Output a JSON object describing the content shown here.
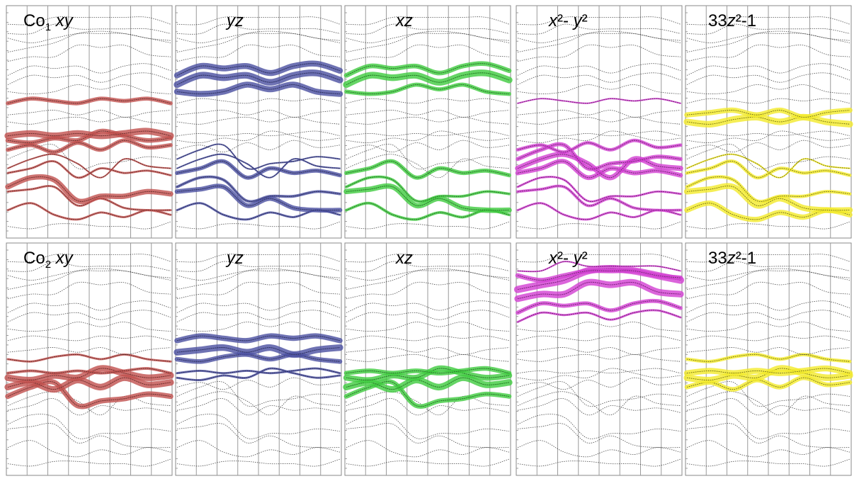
{
  "chart_data": {
    "type": "line",
    "layout": "2 rows x 5 columns of band-structure panels with orbital-projected fat bands",
    "x_axis": {
      "tick_labels_shown": false,
      "vertical_gridlines": 8
    },
    "y_axis": {
      "tick_labels_shown": false,
      "minor_ticks_on_left": true
    },
    "grid": true,
    "rows": [
      {
        "atom": "Co1",
        "panels": [
          {
            "title": {
              "prefix": "Co",
              "sub": "1",
              "rest": " xy"
            },
            "orbital": "xy",
            "color": "#c0504d"
          },
          {
            "title": {
              "prefix": "",
              "sub": "",
              "rest": "yz"
            },
            "orbital": "yz",
            "color": "#4a4fa0"
          },
          {
            "title": {
              "prefix": "",
              "sub": "",
              "rest": "xz"
            },
            "orbital": "xz",
            "color": "#3ecb3e"
          },
          {
            "title": {
              "prefix": "",
              "sub": "",
              "rest": "x2-y2",
              "display": "x²- y²"
            },
            "orbital": "x2-y2",
            "color": "#d23fd2"
          },
          {
            "title": {
              "prefix": "3",
              "sub": "",
              "rest": "z2-1",
              "display": "3z²-1"
            },
            "orbital": "3z2-1",
            "color": "#f2ea2a"
          }
        ]
      },
      {
        "atom": "Co2",
        "panels": [
          {
            "title": {
              "prefix": "Co",
              "sub": "2",
              "rest": " xy"
            },
            "orbital": "xy",
            "color": "#c0504d"
          },
          {
            "title": {
              "prefix": "",
              "sub": "",
              "rest": "yz"
            },
            "orbital": "yz",
            "color": "#4a4fa0"
          },
          {
            "title": {
              "prefix": "",
              "sub": "",
              "rest": "xz"
            },
            "orbital": "xz",
            "color": "#3ecb3e"
          },
          {
            "title": {
              "prefix": "",
              "sub": "",
              "rest": "x2-y2",
              "display": "x²- y²"
            },
            "orbital": "x2-y2",
            "color": "#d23fd2"
          },
          {
            "title": {
              "prefix": "3",
              "sub": "",
              "rest": "z2-1",
              "display": "3z²-1"
            },
            "orbital": "3z2-1",
            "color": "#f2ea2a"
          }
        ]
      }
    ],
    "bands": [
      {
        "y": [
          0.05,
          0.04,
          0.06,
          0.06,
          0.05,
          0.05,
          0.04,
          0.07
        ]
      },
      {
        "y": [
          0.12,
          0.15,
          0.1,
          0.08,
          0.11,
          0.09,
          0.12,
          0.1
        ]
      },
      {
        "y": [
          0.2,
          0.21,
          0.22,
          0.14,
          0.17,
          0.13,
          0.12,
          0.12
        ]
      },
      {
        "y": [
          0.22,
          0.26,
          0.25,
          0.16,
          0.18,
          0.18,
          0.2,
          0.19
        ]
      },
      {
        "y": [
          0.28,
          0.3,
          0.33,
          0.26,
          0.3,
          0.28,
          0.29,
          0.27
        ]
      },
      {
        "y": [
          0.3,
          0.34,
          0.36,
          0.32,
          0.26,
          0.34,
          0.31,
          0.3
        ]
      },
      {
        "y": [
          0.34,
          0.38,
          0.4,
          0.3,
          0.32,
          0.33,
          0.35,
          0.34
        ]
      },
      {
        "y": [
          0.38,
          0.4,
          0.37,
          0.41,
          0.38,
          0.42,
          0.39,
          0.4
        ]
      },
      {
        "y": [
          0.42,
          0.41,
          0.43,
          0.42,
          0.46,
          0.44,
          0.42,
          0.43
        ]
      },
      {
        "y": [
          0.44,
          0.45,
          0.44,
          0.45,
          0.44,
          0.45,
          0.46,
          0.44
        ]
      },
      {
        "y": [
          0.5,
          0.49,
          0.51,
          0.52,
          0.5,
          0.52,
          0.5,
          0.49
        ]
      },
      {
        "y": [
          0.53,
          0.54,
          0.55,
          0.53,
          0.55,
          0.52,
          0.54,
          0.55
        ]
      },
      {
        "y": [
          0.58,
          0.6,
          0.59,
          0.58,
          0.6,
          0.59,
          0.6,
          0.58
        ]
      },
      {
        "y": [
          0.63,
          0.62,
          0.63,
          0.66,
          0.64,
          0.66,
          0.63,
          0.62
        ]
      },
      {
        "y": [
          0.66,
          0.7,
          0.69,
          0.7,
          0.67,
          0.7,
          0.71,
          0.68
        ]
      },
      {
        "y": [
          0.7,
          0.74,
          0.73,
          0.74,
          0.71,
          0.74,
          0.75,
          0.72
        ]
      },
      {
        "y": [
          0.76,
          0.78,
          0.78,
          0.83,
          0.82,
          0.83,
          0.79,
          0.78
        ]
      },
      {
        "y": [
          0.8,
          0.82,
          0.84,
          0.88,
          0.89,
          0.88,
          0.86,
          0.84
        ]
      },
      {
        "y": [
          0.86,
          0.84,
          0.86,
          0.88,
          0.88,
          0.88,
          0.86,
          0.85
        ]
      },
      {
        "y": [
          0.88,
          0.88,
          0.92,
          0.9,
          0.9,
          0.9,
          0.9,
          0.88
        ]
      },
      {
        "y": [
          0.92,
          0.92,
          0.95,
          0.95,
          0.95,
          0.95,
          0.95,
          0.92
        ]
      }
    ],
    "weights": {
      "0": {
        "xy": [
          0,
          0.2,
          0.2,
          0.7,
          0.2,
          0.1,
          0,
          0.5,
          0.6,
          0.9,
          0,
          0,
          0.5,
          0,
          0,
          0,
          0,
          0,
          0,
          0,
          0
        ],
        "yz": [
          0,
          0.2,
          0.6,
          0.3,
          0.5,
          0.1,
          0.1,
          0,
          0,
          0,
          0,
          0,
          0,
          0.8,
          0.9,
          0.8,
          0,
          0,
          0,
          0,
          0
        ],
        "xz": [
          0,
          0.3,
          0.7,
          0.3,
          0.5,
          0,
          0,
          0,
          0,
          0,
          0,
          0,
          0,
          0.5,
          0.9,
          0.6,
          0,
          0,
          0,
          0,
          0
        ],
        "x2-y2": [
          0,
          0.2,
          0.3,
          0.2,
          0.6,
          0.7,
          0.5,
          0.4,
          0,
          0,
          0,
          0,
          0.1,
          0,
          0,
          0,
          0,
          0,
          0,
          0,
          0
        ],
        "3z2-1": [
          0,
          0.7,
          0.8,
          0.4,
          0.4,
          0.1,
          0,
          0,
          0,
          0,
          0.9,
          0.7,
          0,
          0,
          0,
          0,
          0,
          0,
          0,
          0,
          0
        ]
      },
      "1": {
        "xy": [
          0,
          0,
          0,
          0,
          0,
          0,
          0.7,
          0.9,
          0.9,
          0.3,
          0.2,
          0,
          0,
          0,
          0,
          0,
          0,
          0,
          0,
          0,
          0
        ],
        "yz": [
          0,
          0,
          0,
          0,
          0,
          0,
          0,
          0,
          0.2,
          0.2,
          0.6,
          0.9,
          0.7,
          0,
          0,
          0,
          0,
          0,
          0,
          0,
          0
        ],
        "xz": [
          0,
          0,
          0,
          0,
          0,
          0,
          0.6,
          0.9,
          0.8,
          0.6,
          0,
          0,
          0,
          0,
          0,
          0,
          0,
          0,
          0,
          0,
          0
        ],
        "x2-y2": [
          0,
          0,
          0,
          0,
          0,
          0,
          0,
          0,
          0,
          0,
          0,
          0,
          0,
          0,
          0.2,
          0.5,
          0.9,
          1.0,
          0.6,
          0.1,
          0
        ],
        "3z2-1": [
          0,
          0,
          0,
          0,
          0,
          0,
          0,
          0.6,
          0.9,
          0.8,
          0.4,
          0,
          0,
          0,
          0,
          0,
          0,
          0,
          0,
          0,
          0
        ]
      }
    }
  }
}
